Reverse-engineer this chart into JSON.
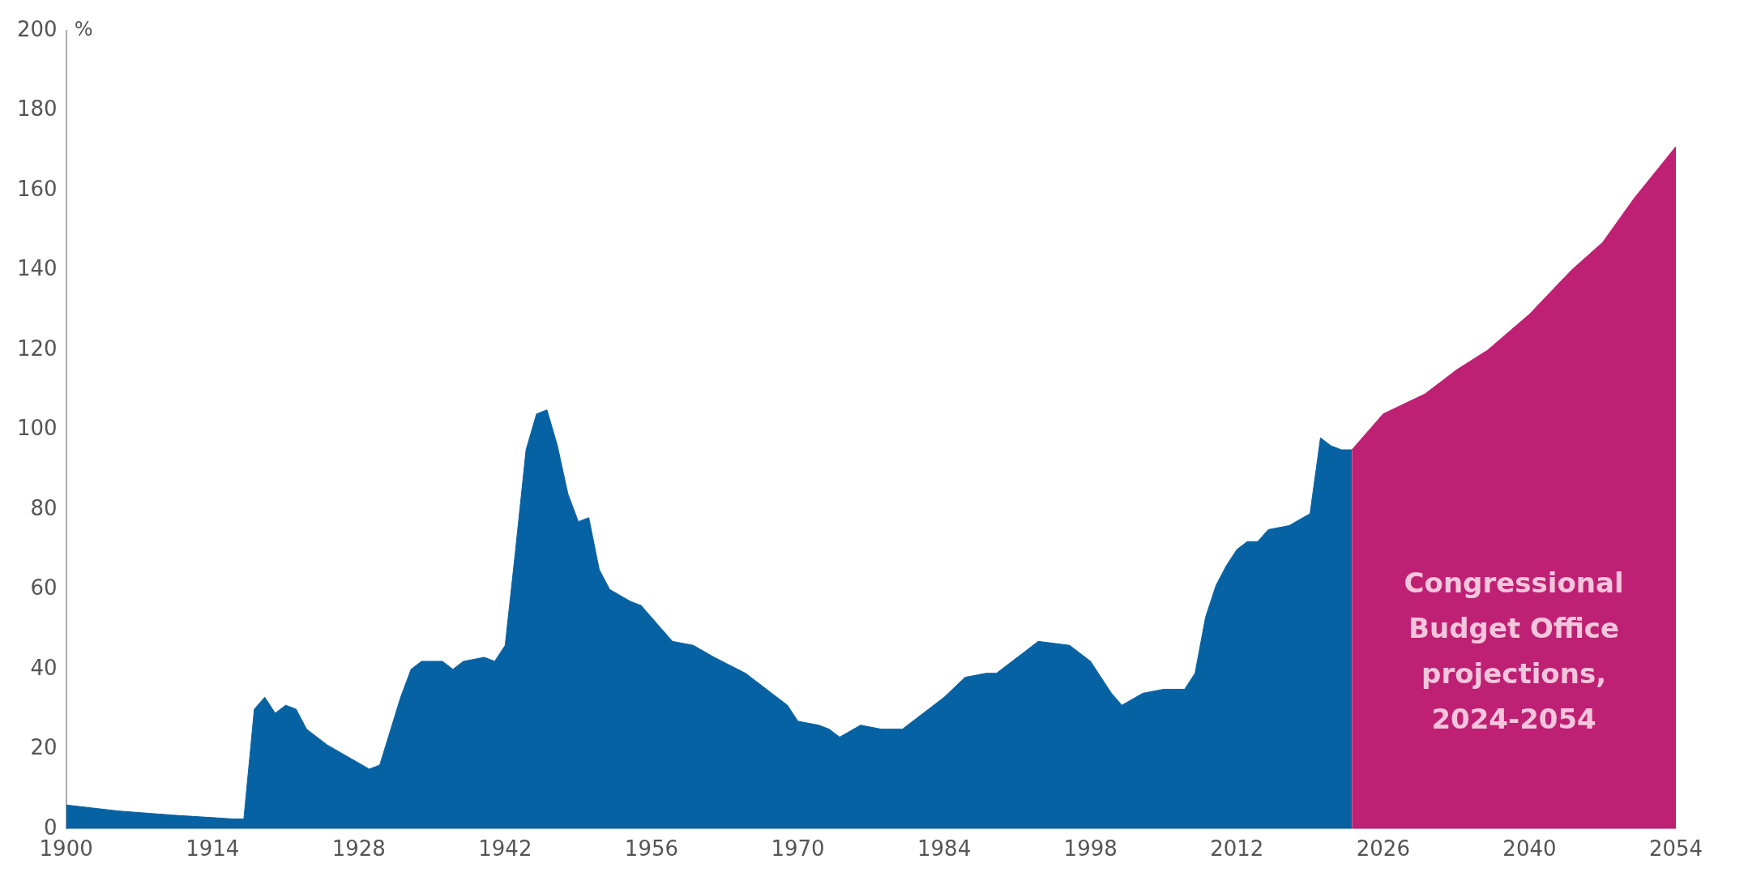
{
  "chart_data": {
    "type": "area",
    "ylabel": "%",
    "series": [
      {
        "color": "#0762a3",
        "x": [
          1900,
          1905,
          1910,
          1916,
          1917,
          1918,
          1919,
          1920,
          1921,
          1922,
          1923,
          1925,
          1927,
          1929,
          1930,
          1932,
          1933,
          1934,
          1936,
          1937,
          1938,
          1940,
          1941,
          1942,
          1943,
          1944,
          1945,
          1946,
          1947,
          1948,
          1949,
          1950,
          1951,
          1952,
          1954,
          1955,
          1957,
          1958,
          1960,
          1962,
          1965,
          1967,
          1969,
          1970,
          1972,
          1973,
          1974,
          1976,
          1978,
          1980,
          1982,
          1984,
          1986,
          1988,
          1989,
          1991,
          1993,
          1996,
          1998,
          2000,
          2001,
          2003,
          2005,
          2007,
          2008,
          2009,
          2010,
          2011,
          2012,
          2013,
          2014,
          2015,
          2017,
          2019,
          2020,
          2021,
          2022,
          2023
        ],
        "values": [
          6,
          4.5,
          3.5,
          2.5,
          2.5,
          30,
          33,
          29,
          31,
          30,
          25,
          21,
          18,
          15,
          16,
          33,
          40,
          42,
          42,
          40,
          42,
          43,
          42,
          46,
          70,
          95,
          104,
          105,
          96,
          84,
          77,
          78,
          65,
          60,
          57,
          56,
          50,
          47,
          46,
          43,
          39,
          35,
          31,
          27,
          26,
          25,
          23,
          26,
          25,
          25,
          29,
          33,
          38,
          39,
          39,
          43,
          47,
          46,
          42,
          34,
          31,
          34,
          35,
          35,
          39,
          53,
          61,
          66,
          70,
          72,
          72,
          75,
          76,
          79,
          98,
          96,
          95,
          95
        ]
      },
      {
        "color": "#be2173",
        "x": [
          2023,
          2026,
          2030,
          2033,
          2036,
          2040,
          2044,
          2047,
          2050,
          2054
        ],
        "values": [
          95,
          104,
          109,
          115,
          120,
          129,
          140,
          147,
          158,
          171
        ]
      }
    ],
    "xlim": [
      1900,
      2054
    ],
    "xticks": [
      1900,
      1914,
      1928,
      1942,
      1956,
      1970,
      1984,
      1998,
      2012,
      2026,
      2040,
      2054
    ],
    "ylim": [
      0,
      200
    ],
    "yticks": [
      0,
      20,
      40,
      60,
      80,
      100,
      120,
      140,
      160,
      180,
      200
    ],
    "annotations": [
      "Congressional Budget Office projections, 2024-2054"
    ]
  }
}
